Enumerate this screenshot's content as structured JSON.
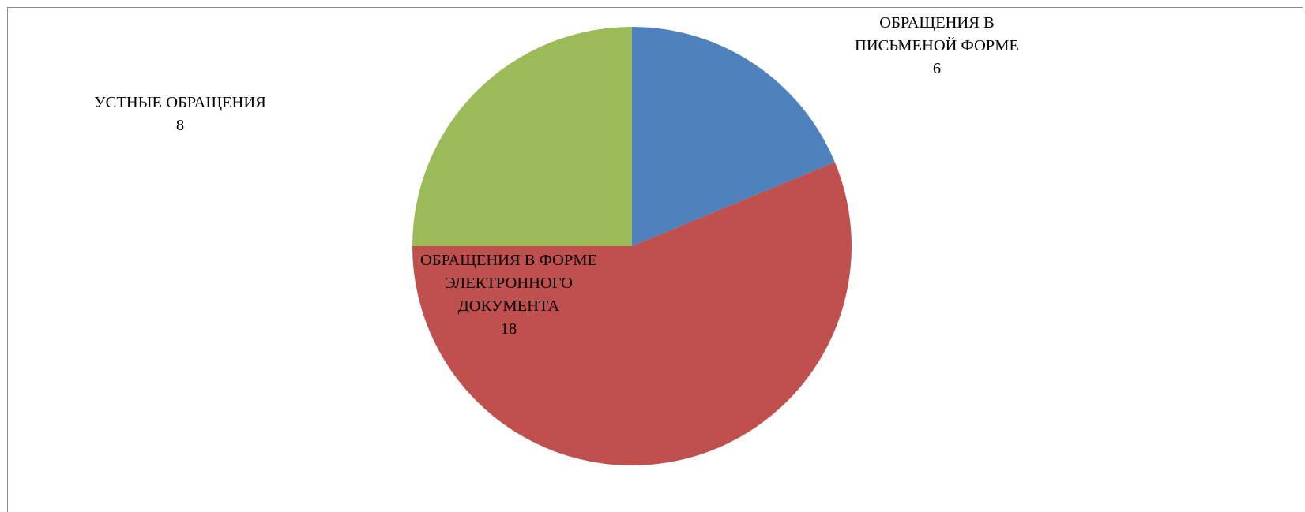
{
  "chart_data": {
    "type": "pie",
    "title": "",
    "categories": [
      "ОБРАЩЕНИЯ В ПИСЬМЕНОЙ ФОРМЕ",
      "ОБРАЩЕНИЯ В ФОРМЕ ЭЛЕКТРОННОГО ДОКУМЕНТА",
      "УСТНЫЕ ОБРАЩЕНИЯ"
    ],
    "values": [
      6,
      18,
      8
    ],
    "colors": [
      "#4F81BD",
      "#C0504D",
      "#9BBB59"
    ],
    "legend": "none",
    "labels": [
      {
        "lines": [
          "ОБРАЩЕНИЯ В",
          "ПИСЬМЕНОЙ ФОРМЕ"
        ],
        "value": "6"
      },
      {
        "lines": [
          "ОБРАЩЕНИЯ В ФОРМЕ",
          "ЭЛЕКТРОННОГО",
          "ДОКУМЕНТА"
        ],
        "value": "18"
      },
      {
        "lines": [
          "УСТНЫЕ ОБРАЩЕНИЯ"
        ],
        "value": "8"
      }
    ]
  }
}
